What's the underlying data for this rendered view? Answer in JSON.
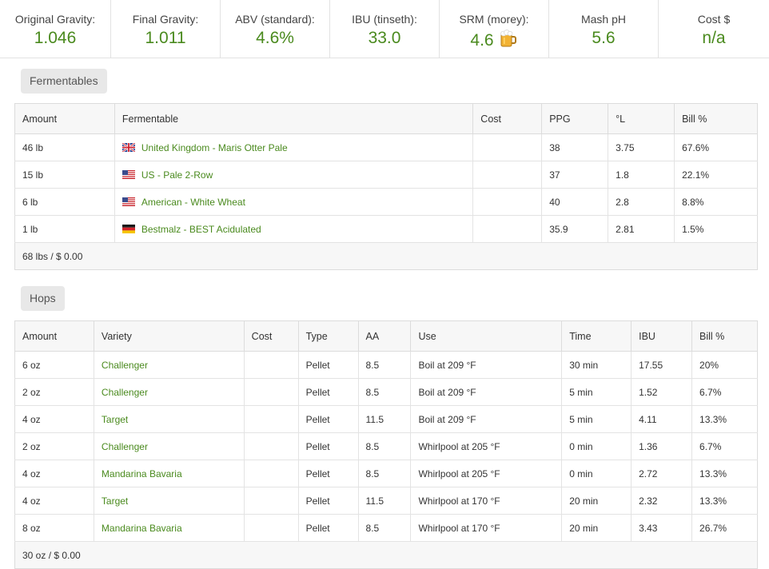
{
  "stats": [
    {
      "label": "Original Gravity:",
      "value": "1.046"
    },
    {
      "label": "Final Gravity:",
      "value": "1.011"
    },
    {
      "label": "ABV (standard):",
      "value": "4.6%"
    },
    {
      "label": "IBU (tinseth):",
      "value": "33.0"
    },
    {
      "label": "SRM (morey):",
      "value": "4.6",
      "icon": "beer-mug-icon"
    },
    {
      "label": "Mash pH",
      "value": "5.6"
    },
    {
      "label": "Cost $",
      "value": "n/a"
    }
  ],
  "fermentables": {
    "section_label": "Fermentables",
    "headers": [
      "Amount",
      "Fermentable",
      "Cost",
      "PPG",
      "°L",
      "Bill %"
    ],
    "rows": [
      {
        "amount": "46 lb",
        "flag": "uk-flag-icon",
        "name": "United Kingdom - Maris Otter Pale",
        "cost": "",
        "ppg": "38",
        "lovibond": "3.75",
        "bill": "67.6%"
      },
      {
        "amount": "15 lb",
        "flag": "us-flag-icon",
        "name": "US - Pale 2-Row",
        "cost": "",
        "ppg": "37",
        "lovibond": "1.8",
        "bill": "22.1%"
      },
      {
        "amount": "6 lb",
        "flag": "us-flag-icon",
        "name": "American - White Wheat",
        "cost": "",
        "ppg": "40",
        "lovibond": "2.8",
        "bill": "8.8%"
      },
      {
        "amount": "1 lb",
        "flag": "de-flag-icon",
        "name": "Bestmalz - BEST Acidulated",
        "cost": "",
        "ppg": "35.9",
        "lovibond": "2.81",
        "bill": "1.5%"
      }
    ],
    "footer": "68 lbs / $ 0.00"
  },
  "hops": {
    "section_label": "Hops",
    "headers": [
      "Amount",
      "Variety",
      "Cost",
      "Type",
      "AA",
      "Use",
      "Time",
      "IBU",
      "Bill %"
    ],
    "rows": [
      {
        "amount": "6 oz",
        "variety": "Challenger",
        "cost": "",
        "type": "Pellet",
        "aa": "8.5",
        "use": "Boil at 209 °F",
        "time": "30 min",
        "ibu": "17.55",
        "bill": "20%"
      },
      {
        "amount": "2 oz",
        "variety": "Challenger",
        "cost": "",
        "type": "Pellet",
        "aa": "8.5",
        "use": "Boil at 209 °F",
        "time": "5 min",
        "ibu": "1.52",
        "bill": "6.7%"
      },
      {
        "amount": "4 oz",
        "variety": "Target",
        "cost": "",
        "type": "Pellet",
        "aa": "11.5",
        "use": "Boil at 209 °F",
        "time": "5 min",
        "ibu": "4.11",
        "bill": "13.3%"
      },
      {
        "amount": "2 oz",
        "variety": "Challenger",
        "cost": "",
        "type": "Pellet",
        "aa": "8.5",
        "use": "Whirlpool at 205 °F",
        "time": "0 min",
        "ibu": "1.36",
        "bill": "6.7%"
      },
      {
        "amount": "4 oz",
        "variety": "Mandarina Bavaria",
        "cost": "",
        "type": "Pellet",
        "aa": "8.5",
        "use": "Whirlpool at 205 °F",
        "time": "0 min",
        "ibu": "2.72",
        "bill": "13.3%"
      },
      {
        "amount": "4 oz",
        "variety": "Target",
        "cost": "",
        "type": "Pellet",
        "aa": "11.5",
        "use": "Whirlpool at 170 °F",
        "time": "20 min",
        "ibu": "2.32",
        "bill": "13.3%"
      },
      {
        "amount": "8 oz",
        "variety": "Mandarina Bavaria",
        "cost": "",
        "type": "Pellet",
        "aa": "8.5",
        "use": "Whirlpool at 170 °F",
        "time": "20 min",
        "ibu": "3.43",
        "bill": "26.7%"
      }
    ],
    "footer": "30 oz / $ 0.00"
  },
  "colors": {
    "accent": "#4a8a1e",
    "header_bg": "#f7f7f7",
    "label_bg": "#e8e8e8"
  }
}
